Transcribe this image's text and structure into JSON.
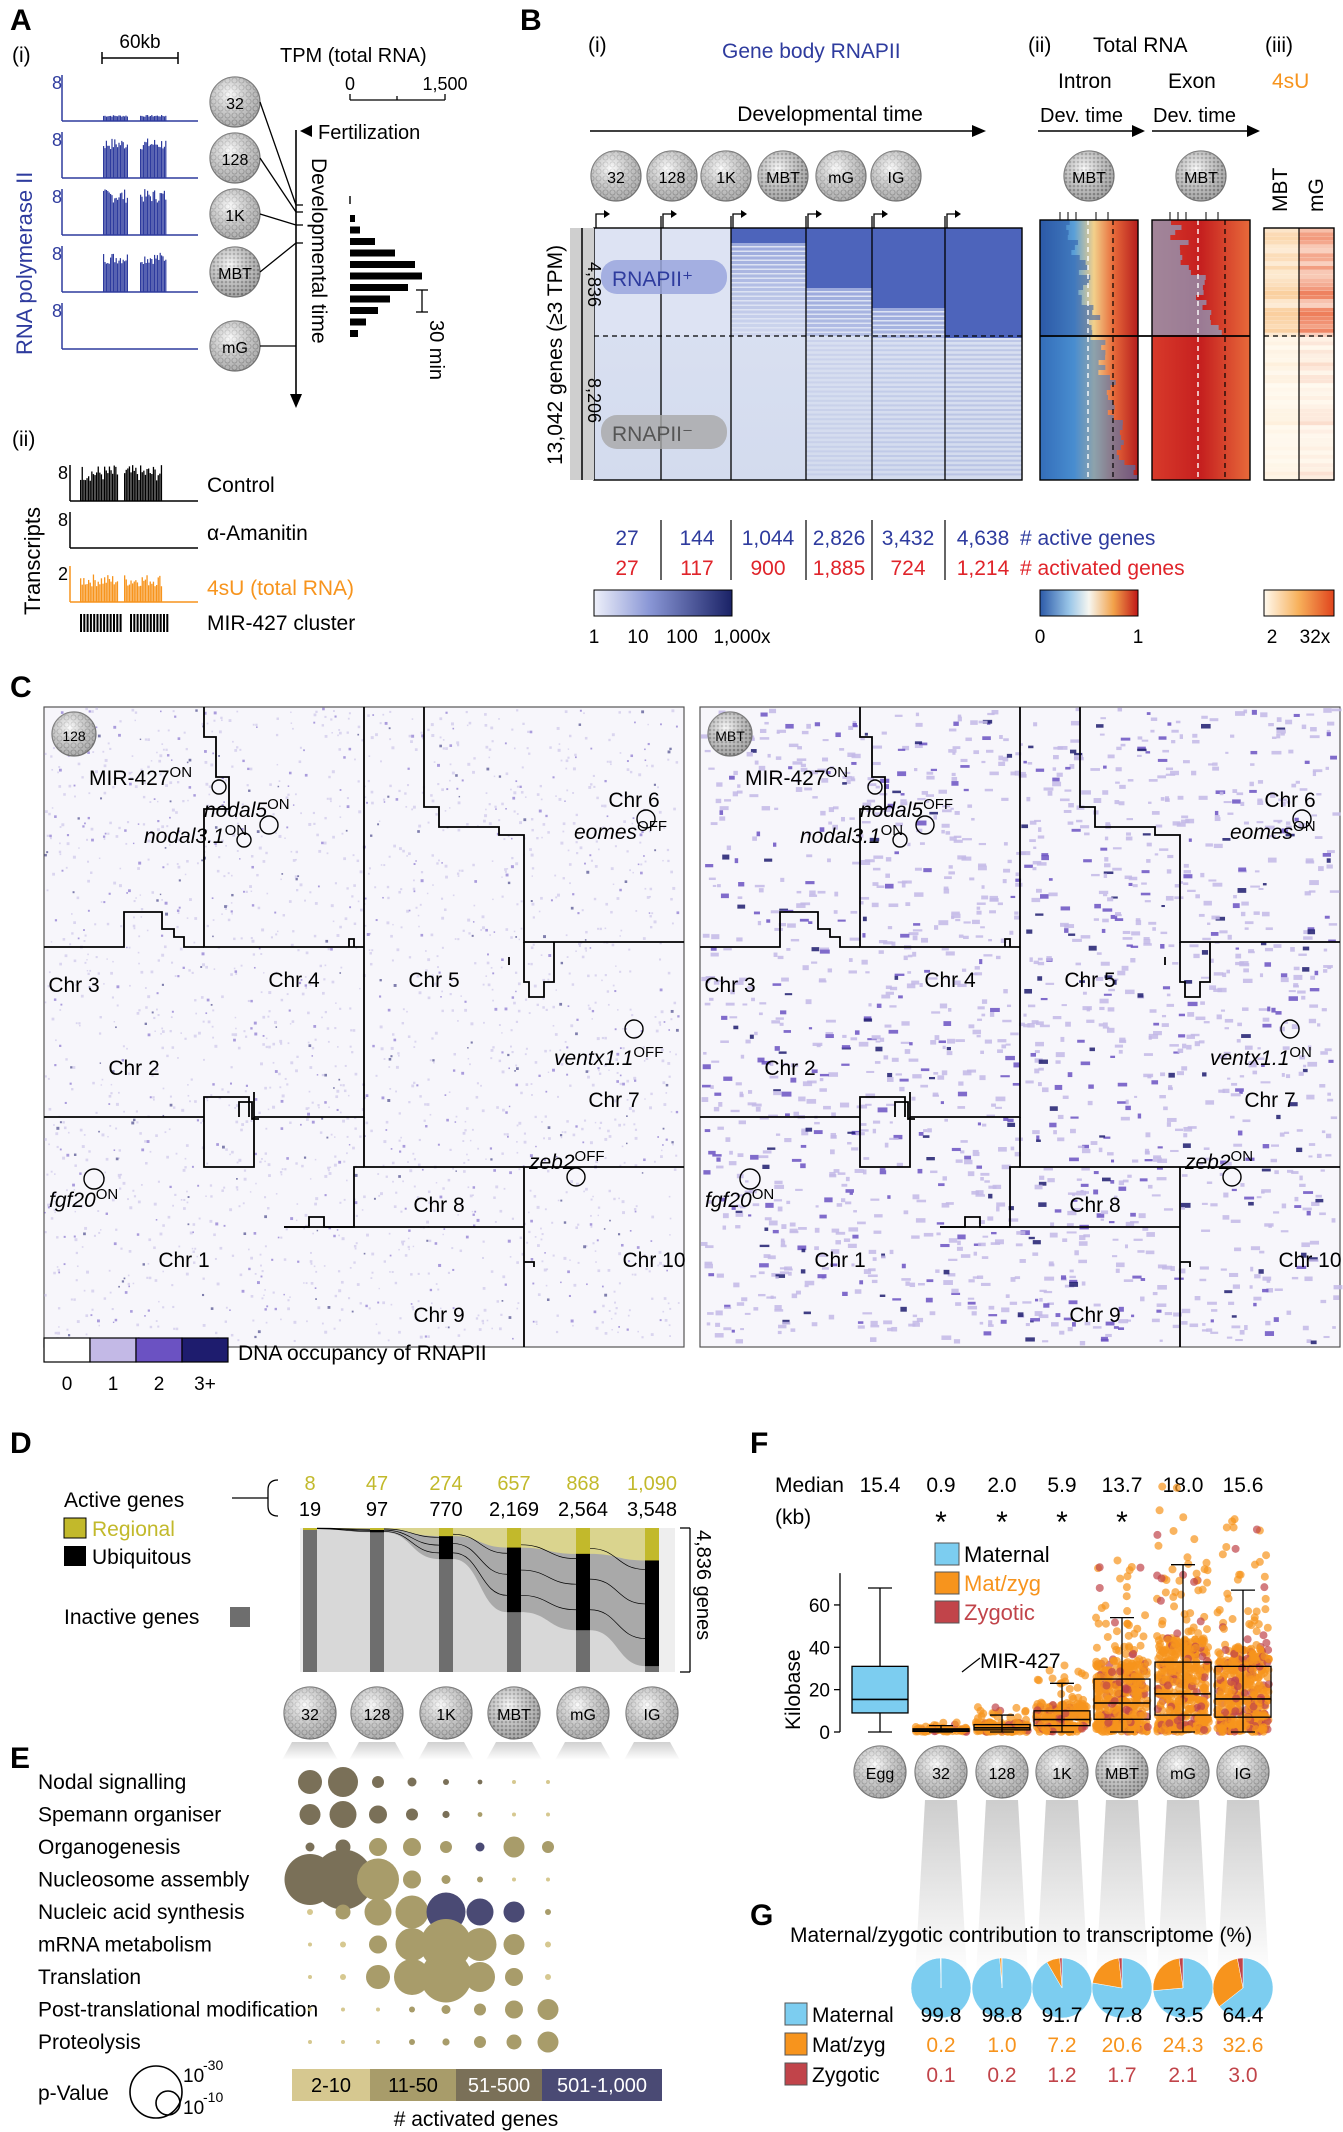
{
  "panels": {
    "a": "A",
    "b": "B",
    "c": "C",
    "d": "D",
    "e": "E",
    "f": "F",
    "g": "G"
  },
  "stages": [
    "32",
    "128",
    "1K",
    "MBT",
    "mG"
  ],
  "stages_full": [
    "32",
    "128",
    "1K",
    "MBT",
    "mG",
    "IG"
  ],
  "panel_a": {
    "sub_i": "(i)",
    "sub_ii": "(ii)",
    "scale": "60kb",
    "tpm_title": "TPM (total RNA)",
    "tpm_ticks": [
      "0",
      "1,500"
    ],
    "fertilization": "Fertilization",
    "dev_time": "Developmental time",
    "rnap_label": "RNA polymerase II",
    "track_max": "8",
    "interval": "30 min",
    "tpm_bars": [
      0.05,
      0.1,
      0.25,
      0.45,
      0.65,
      0.72,
      0.58,
      0.4,
      0.28,
      0.16,
      0.08
    ],
    "transcripts_label": "Transcripts",
    "t_max": [
      "8",
      "8",
      "2"
    ],
    "tracks": [
      "Control",
      "α-Amanitin",
      "4sU (total RNA)"
    ],
    "cluster": "MIR-427 cluster"
  },
  "panel_b": {
    "sub_i": "(i)",
    "sub_ii": "(ii)",
    "sub_iii": "(iii)",
    "title": "Gene body RNAPII",
    "dev_time": "Developmental time",
    "total_rna": "Total RNA",
    "intron": "Intron",
    "exon": "Exon",
    "devtime_short": "Dev. time",
    "mbt": "MBT",
    "u4": "4sU",
    "col_mbt": "MBT",
    "col_mg": "mG",
    "ylabel": "13,042 genes (≥3 TPM)",
    "n_pos": "4,836",
    "n_neg": "8,206",
    "pos_label": "RNAPII⁺",
    "neg_label": "RNAPII⁻",
    "active_counts": [
      "27",
      "144",
      "1,044",
      "2,826",
      "3,432",
      "4,638"
    ],
    "activated_counts": [
      "27",
      "117",
      "900",
      "1,885",
      "724",
      "1,214"
    ],
    "active_label": "# active genes",
    "activated_label": "# activated genes",
    "scale1": [
      "1",
      "10",
      "100",
      "1,000x"
    ],
    "scale2": [
      "0",
      "1"
    ],
    "scale3": [
      "2",
      "32x"
    ]
  },
  "panel_c": {
    "left_stage": "128",
    "right_stage": "MBT",
    "chromosomes": [
      "Chr 1",
      "Chr 2",
      "Chr 3",
      "Chr 4",
      "Chr 5",
      "Chr 6",
      "Chr 7",
      "Chr 8",
      "Chr 9",
      "Chr 10"
    ],
    "left_genes": [
      {
        "name": "MIR-427",
        "state": "ON"
      },
      {
        "name": "nodal5",
        "state": "ON"
      },
      {
        "name": "nodal3.1",
        "state": "ON"
      },
      {
        "name": "eomes",
        "state": "OFF"
      },
      {
        "name": "ventx1.1",
        "state": "OFF"
      },
      {
        "name": "zeb2",
        "state": "OFF"
      },
      {
        "name": "fgf20",
        "state": "ON"
      }
    ],
    "right_genes": [
      {
        "name": "MIR-427",
        "state": "ON"
      },
      {
        "name": "nodal5",
        "state": "OFF"
      },
      {
        "name": "nodal3.1",
        "state": "ON"
      },
      {
        "name": "eomes",
        "state": "ON"
      },
      {
        "name": "ventx1.1",
        "state": "ON"
      },
      {
        "name": "zeb2",
        "state": "ON"
      },
      {
        "name": "fgf20",
        "state": "ON"
      }
    ],
    "legend": "DNA occupancy of RNAPII",
    "legend_ticks": [
      "0",
      "1",
      "2",
      "3+"
    ]
  },
  "panel_d": {
    "active_genes": "Active genes",
    "regional": "Regional",
    "ubiquitous": "Ubiquitous",
    "inactive": "Inactive genes",
    "regional_counts": [
      "8",
      "47",
      "274",
      "657",
      "868",
      "1,090"
    ],
    "ubiquitous_counts": [
      "19",
      "97",
      "770",
      "2,169",
      "2,564",
      "3,548"
    ],
    "total": "4,836 genes"
  },
  "panel_e": {
    "terms": [
      "Nodal signalling",
      "Spemann organiser",
      "Organogenesis",
      "Nucleosome assembly",
      "Nucleic acid synthesis",
      "mRNA metabolism",
      "Translation",
      "Post-translational modification",
      "Proteolysis"
    ],
    "pvalue": "p-Value",
    "p1": "10",
    "p1e": "-30",
    "p2": "10",
    "p2e": "-10",
    "bins": [
      "2-10",
      "11-50",
      "51-500",
      "501-1,000"
    ],
    "bins_label": "# activated genes",
    "dots": [
      [
        [
          0,
          2,
          0.4
        ],
        [
          1,
          2,
          0.5
        ],
        [
          2,
          2,
          0.2
        ],
        [
          3,
          2,
          0.15
        ],
        [
          4,
          2,
          0.1
        ],
        [
          5,
          2,
          0.08
        ],
        [
          6,
          0,
          0.04
        ],
        [
          7,
          0,
          0.04
        ]
      ],
      [
        [
          0,
          2,
          0.35
        ],
        [
          1,
          2,
          0.45
        ],
        [
          2,
          2,
          0.3
        ],
        [
          3,
          2,
          0.2
        ],
        [
          4,
          2,
          0.12
        ],
        [
          5,
          1,
          0.08
        ],
        [
          6,
          0,
          0.05
        ],
        [
          7,
          0,
          0.04
        ]
      ],
      [
        [
          0,
          2,
          0.15
        ],
        [
          1,
          2,
          0.25
        ],
        [
          2,
          1,
          0.3
        ],
        [
          3,
          1,
          0.3
        ],
        [
          4,
          1,
          0.2
        ],
        [
          5,
          3,
          0.15
        ],
        [
          6,
          1,
          0.35
        ],
        [
          7,
          1,
          0.2
        ]
      ],
      [
        [
          0,
          2,
          0.85
        ],
        [
          1,
          2,
          1.0
        ],
        [
          2,
          1,
          0.7
        ],
        [
          3,
          1,
          0.3
        ],
        [
          4,
          1,
          0.15
        ],
        [
          5,
          1,
          0.1
        ],
        [
          6,
          0,
          0.05
        ],
        [
          7,
          0,
          0.05
        ]
      ],
      [
        [
          0,
          0,
          0.1
        ],
        [
          1,
          1,
          0.25
        ],
        [
          2,
          1,
          0.45
        ],
        [
          3,
          1,
          0.55
        ],
        [
          4,
          3,
          0.65
        ],
        [
          5,
          3,
          0.45
        ],
        [
          6,
          3,
          0.35
        ],
        [
          7,
          1,
          0.1
        ]
      ],
      [
        [
          0,
          0,
          0.05
        ],
        [
          1,
          0,
          0.1
        ],
        [
          2,
          1,
          0.3
        ],
        [
          3,
          1,
          0.55
        ],
        [
          4,
          1,
          0.85
        ],
        [
          5,
          1,
          0.55
        ],
        [
          6,
          1,
          0.35
        ],
        [
          7,
          0,
          0.1
        ]
      ],
      [
        [
          0,
          0,
          0.05
        ],
        [
          1,
          0,
          0.1
        ],
        [
          2,
          1,
          0.4
        ],
        [
          3,
          1,
          0.6
        ],
        [
          4,
          1,
          0.85
        ],
        [
          5,
          1,
          0.5
        ],
        [
          6,
          1,
          0.3
        ],
        [
          7,
          0,
          0.1
        ]
      ],
      [
        [
          0,
          0,
          0.04
        ],
        [
          1,
          0,
          0.05
        ],
        [
          2,
          0,
          0.06
        ],
        [
          3,
          1,
          0.1
        ],
        [
          4,
          1,
          0.15
        ],
        [
          5,
          1,
          0.2
        ],
        [
          6,
          1,
          0.3
        ],
        [
          7,
          1,
          0.35
        ]
      ],
      [
        [
          0,
          0,
          0.04
        ],
        [
          1,
          0,
          0.05
        ],
        [
          2,
          0,
          0.06
        ],
        [
          3,
          1,
          0.1
        ],
        [
          4,
          1,
          0.12
        ],
        [
          5,
          1,
          0.2
        ],
        [
          6,
          1,
          0.25
        ],
        [
          7,
          1,
          0.35
        ]
      ]
    ]
  },
  "panel_f": {
    "median_label": "Median",
    "kb": "(kb)",
    "medians": [
      "15.4",
      "0.9",
      "2.0",
      "5.9",
      "13.7",
      "18.0",
      "15.6"
    ],
    "stars": [
      "",
      "*",
      "*",
      "*",
      "*",
      "",
      ""
    ],
    "ylabel": "Kilobase",
    "yticks": [
      "0",
      "20",
      "40",
      "60"
    ],
    "legend": [
      "Maternal",
      "Mat/zyg",
      "Zygotic"
    ],
    "annotation": "MIR-427",
    "stages": [
      "Egg",
      "32",
      "128",
      "1K",
      "MBT",
      "mG",
      "IG"
    ]
  },
  "panel_g": {
    "title": "Maternal/zygotic contribution to transcriptome (%)",
    "rows": [
      "Maternal",
      "Mat/zyg",
      "Zygotic"
    ],
    "maternal": [
      "99.8",
      "98.8",
      "91.7",
      "77.8",
      "73.5",
      "64.4"
    ],
    "matzyg": [
      "0.2",
      "1.0",
      "7.2",
      "20.6",
      "24.3",
      "32.6"
    ],
    "zygotic": [
      "0.1",
      "0.2",
      "1.2",
      "1.7",
      "2.1",
      "3.0"
    ]
  },
  "colors": {
    "blue": "#2e3b9e",
    "red": "#e0242a",
    "orange": "#f7941d",
    "olive": "#c2b92b",
    "maternal": "#7ccdf0",
    "zygotic": "#c1444a"
  },
  "chart_data": [
    {
      "type": "bar",
      "categories": [
        "Egg",
        "32",
        "128",
        "1K",
        "MBT",
        "mG",
        "IG"
      ],
      "values": [
        15.4,
        0.9,
        2.0,
        5.9,
        13.7,
        18.0,
        15.6
      ],
      "ylabel": "Kilobase",
      "ylim": [
        0,
        85
      ]
    },
    {
      "type": "pie",
      "categories": [
        "32",
        "128",
        "1K",
        "MBT",
        "mG",
        "IG"
      ],
      "series": [
        {
          "name": "Maternal",
          "values": [
            99.8,
            98.8,
            91.7,
            77.8,
            73.5,
            64.4
          ]
        },
        {
          "name": "Mat/zyg",
          "values": [
            0.2,
            1.0,
            7.2,
            20.6,
            24.3,
            32.6
          ]
        },
        {
          "name": "Zygotic",
          "values": [
            0.1,
            0.2,
            1.2,
            1.7,
            2.1,
            3.0
          ]
        }
      ]
    }
  ]
}
